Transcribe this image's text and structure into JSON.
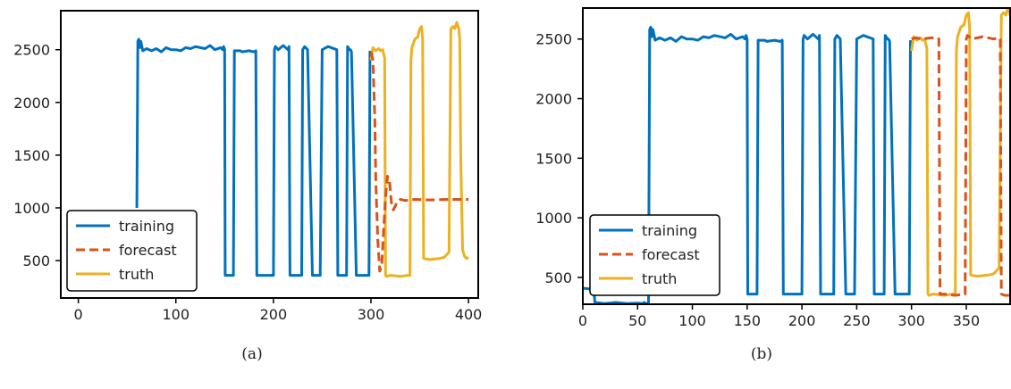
{
  "colors": {
    "training": "#0072bd",
    "forecast": "#d95319",
    "truth": "#edb120",
    "axis": "#000000"
  },
  "chart_data": [
    {
      "type": "line",
      "caption": "(a)",
      "xlim": [
        -18,
        410
      ],
      "ylim": [
        145,
        2870
      ],
      "xticks": [
        0,
        100,
        200,
        300,
        400
      ],
      "yticks": [
        500,
        1000,
        1500,
        2000,
        2500
      ],
      "legend": {
        "placement": "lower-left",
        "entries": [
          "training",
          "forecast",
          "truth"
        ]
      },
      "series": [
        {
          "name": "training",
          "style": "solid",
          "x": [
            60,
            61,
            62,
            63,
            64,
            66,
            70,
            75,
            80,
            85,
            90,
            95,
            100,
            105,
            110,
            115,
            120,
            125,
            130,
            135,
            140,
            146,
            148,
            149,
            150,
            150.5,
            151,
            158,
            159,
            160,
            166,
            168,
            175,
            180,
            182,
            183,
            184,
            185,
            190,
            200,
            201,
            202,
            205,
            210,
            215,
            216,
            217,
            225,
            228,
            229,
            230,
            232,
            235,
            240,
            241,
            242,
            248,
            250,
            256,
            265,
            266,
            267,
            270,
            275,
            276,
            278,
            279,
            280,
            285,
            290,
            291,
            292,
            296,
            298,
            299
          ],
          "y": [
            1000,
            2580,
            2600,
            2520,
            2580,
            2490,
            2510,
            2490,
            2510,
            2480,
            2520,
            2500,
            2500,
            2490,
            2520,
            2510,
            2530,
            2520,
            2510,
            2540,
            2500,
            2520,
            2500,
            2530,
            2500,
            360,
            360,
            360,
            360,
            2490,
            2490,
            2480,
            2490,
            2480,
            2490,
            360,
            360,
            360,
            360,
            360,
            2500,
            2530,
            2500,
            2540,
            2500,
            2530,
            360,
            360,
            360,
            360,
            2500,
            2530,
            2500,
            360,
            360,
            360,
            360,
            2500,
            2530,
            2500,
            360,
            360,
            360,
            360,
            2530,
            2500,
            2500,
            2480,
            360,
            360,
            360,
            360,
            360,
            360,
            2490
          ]
        },
        {
          "name": "forecast",
          "style": "dashed",
          "x": [
            300,
            302,
            304,
            305,
            307,
            309,
            311,
            313,
            315,
            317,
            319,
            321,
            323,
            325,
            327,
            330,
            335,
            345,
            360,
            380,
            400
          ],
          "y": [
            2480,
            2400,
            1850,
            1250,
            700,
            400,
            450,
            800,
            1100,
            1300,
            1250,
            1050,
            980,
            1020,
            1060,
            1080,
            1070,
            1080,
            1075,
            1080,
            1080
          ]
        },
        {
          "name": "truth",
          "style": "solid",
          "x": [
            300,
            302,
            305,
            308,
            310,
            312,
            314,
            315,
            316,
            320,
            330,
            338,
            340,
            341,
            342,
            345,
            348,
            350,
            352,
            353,
            354,
            360,
            370,
            375,
            378,
            380,
            382,
            384,
            386,
            388,
            390,
            391,
            392,
            394,
            396,
            398,
            400
          ],
          "y": [
            2400,
            2520,
            2490,
            2510,
            2490,
            2500,
            2420,
            360,
            350,
            360,
            350,
            360,
            360,
            2400,
            2520,
            2600,
            2620,
            2700,
            2720,
            2600,
            520,
            510,
            520,
            530,
            560,
            580,
            2700,
            2720,
            2700,
            2760,
            2700,
            2600,
            1500,
            600,
            540,
            520,
            530
          ]
        }
      ]
    },
    {
      "type": "line",
      "caption": "(b)",
      "xlim": [
        0,
        390
      ],
      "ylim": [
        275,
        2760
      ],
      "xticks": [
        0,
        50,
        100,
        150,
        200,
        250,
        300,
        350
      ],
      "yticks": [
        500,
        1000,
        1500,
        2000,
        2500
      ],
      "legend": {
        "placement": "lower-left",
        "entries": [
          "training",
          "forecast",
          "truth"
        ]
      },
      "series": [
        {
          "name": "training",
          "style": "solid",
          "x": [
            0,
            10,
            11,
            20,
            30,
            40,
            50,
            55,
            56,
            58,
            60,
            61,
            62,
            63,
            64,
            66,
            70,
            75,
            80,
            85,
            90,
            95,
            100,
            105,
            110,
            115,
            120,
            125,
            130,
            135,
            140,
            146,
            148,
            149,
            150,
            150.5,
            151,
            158,
            159,
            160,
            166,
            168,
            175,
            180,
            182,
            183,
            184,
            185,
            190,
            200,
            201,
            202,
            205,
            210,
            215,
            216,
            217,
            225,
            228,
            229,
            230,
            232,
            235,
            240,
            241,
            242,
            248,
            250,
            256,
            265,
            266,
            267,
            270,
            275,
            276,
            278,
            279,
            280,
            285,
            290,
            291,
            292,
            296,
            298,
            299
          ],
          "y": [
            410,
            400,
            290,
            280,
            290,
            280,
            285,
            280,
            290,
            280,
            285,
            2580,
            2600,
            2520,
            2580,
            2490,
            2510,
            2490,
            2510,
            2480,
            2520,
            2500,
            2500,
            2490,
            2520,
            2510,
            2530,
            2520,
            2510,
            2540,
            2500,
            2520,
            2500,
            2530,
            2500,
            360,
            360,
            360,
            360,
            2490,
            2490,
            2480,
            2490,
            2480,
            2490,
            360,
            360,
            360,
            360,
            360,
            2500,
            2530,
            2500,
            2540,
            2500,
            2530,
            360,
            360,
            360,
            360,
            2500,
            2530,
            2500,
            360,
            360,
            360,
            360,
            2500,
            2530,
            2500,
            360,
            360,
            360,
            360,
            2530,
            2500,
            2500,
            2480,
            360,
            360,
            360,
            360,
            360,
            360,
            2490
          ]
        },
        {
          "name": "forecast",
          "style": "dashed",
          "x": [
            300,
            304,
            310,
            318,
            324,
            325,
            326,
            330,
            340,
            348,
            349,
            350,
            351,
            355,
            365,
            375,
            380,
            381,
            382,
            385,
            390
          ],
          "y": [
            2500,
            2510,
            2500,
            2510,
            2510,
            2500,
            360,
            360,
            350,
            360,
            360,
            2500,
            2530,
            2500,
            2520,
            2500,
            2510,
            2500,
            360,
            350,
            350
          ]
        },
        {
          "name": "truth",
          "style": "solid",
          "x": [
            300,
            302,
            305,
            308,
            310,
            312,
            314,
            315,
            316,
            320,
            330,
            338,
            340,
            341,
            342,
            345,
            348,
            350,
            352,
            353,
            354,
            360,
            370,
            375,
            378,
            380,
            382,
            384,
            386,
            388,
            390
          ],
          "y": [
            2400,
            2520,
            2490,
            2510,
            2490,
            2500,
            2420,
            360,
            350,
            360,
            350,
            360,
            360,
            2400,
            2520,
            2600,
            2620,
            2700,
            2720,
            2600,
            520,
            510,
            520,
            530,
            560,
            580,
            2700,
            2720,
            2700,
            2760,
            2700
          ]
        }
      ]
    }
  ]
}
